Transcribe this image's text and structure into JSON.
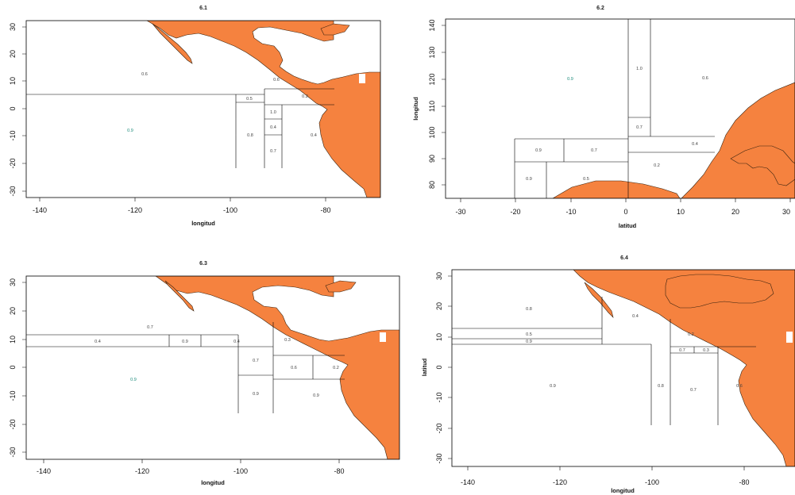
{
  "colors": {
    "land": "#f5823f",
    "marker": "#1b8a7a"
  },
  "panels": [
    {
      "title": "6.1",
      "xlabel": "longitud",
      "ylabel": "",
      "xticks": [
        "-140",
        "-120",
        "-100",
        "-80"
      ],
      "yticks": [
        "30",
        "20",
        "10",
        "0",
        "-10",
        "-20",
        "-30"
      ],
      "region_labels": [
        "0.6",
        "0.6",
        "0.5",
        "0.2",
        "1.0",
        "0.4",
        "0.8",
        "0.7",
        "0.4"
      ],
      "marker_label": "0.9"
    },
    {
      "title": "6.2",
      "xlabel": "latitud",
      "ylabel": "longitud",
      "xticks": [
        "-30",
        "-20",
        "-10",
        "0",
        "10",
        "20",
        "30"
      ],
      "yticks": [
        "140",
        "130",
        "120",
        "110",
        "100",
        "90",
        "80"
      ],
      "region_labels": [
        "1.0",
        "0.6",
        "0.7",
        "0.4",
        "0.9",
        "0.7",
        "0.2",
        "0.9",
        "0.5"
      ],
      "marker_label": "0.9"
    },
    {
      "title": "6.3",
      "xlabel": "longitud",
      "ylabel": "",
      "xticks": [
        "-140",
        "-120",
        "-100",
        "-80"
      ],
      "yticks": [
        "30",
        "20",
        "10",
        "0",
        "-10",
        "-20",
        "-30"
      ],
      "region_labels": [
        "0.7",
        "0.4",
        "0.9",
        "0.4",
        "0.3",
        "0.7",
        "0.6",
        "0.2",
        "0.9",
        "0.9"
      ],
      "marker_label": "0.9"
    },
    {
      "title": "6.4",
      "xlabel": "longitud",
      "ylabel": "latitud",
      "xticks": [
        "-140",
        "-120",
        "-100",
        "-80"
      ],
      "yticks": [
        "30",
        "20",
        "10",
        "0",
        "-10",
        "-20",
        "-30"
      ],
      "region_labels": [
        "0.8",
        "0.4",
        "0.2",
        "0.5",
        "0.9",
        "0.7",
        "0.3",
        "0.9",
        "0.8",
        "0.7",
        "0.6"
      ],
      "marker_label": ""
    }
  ]
}
